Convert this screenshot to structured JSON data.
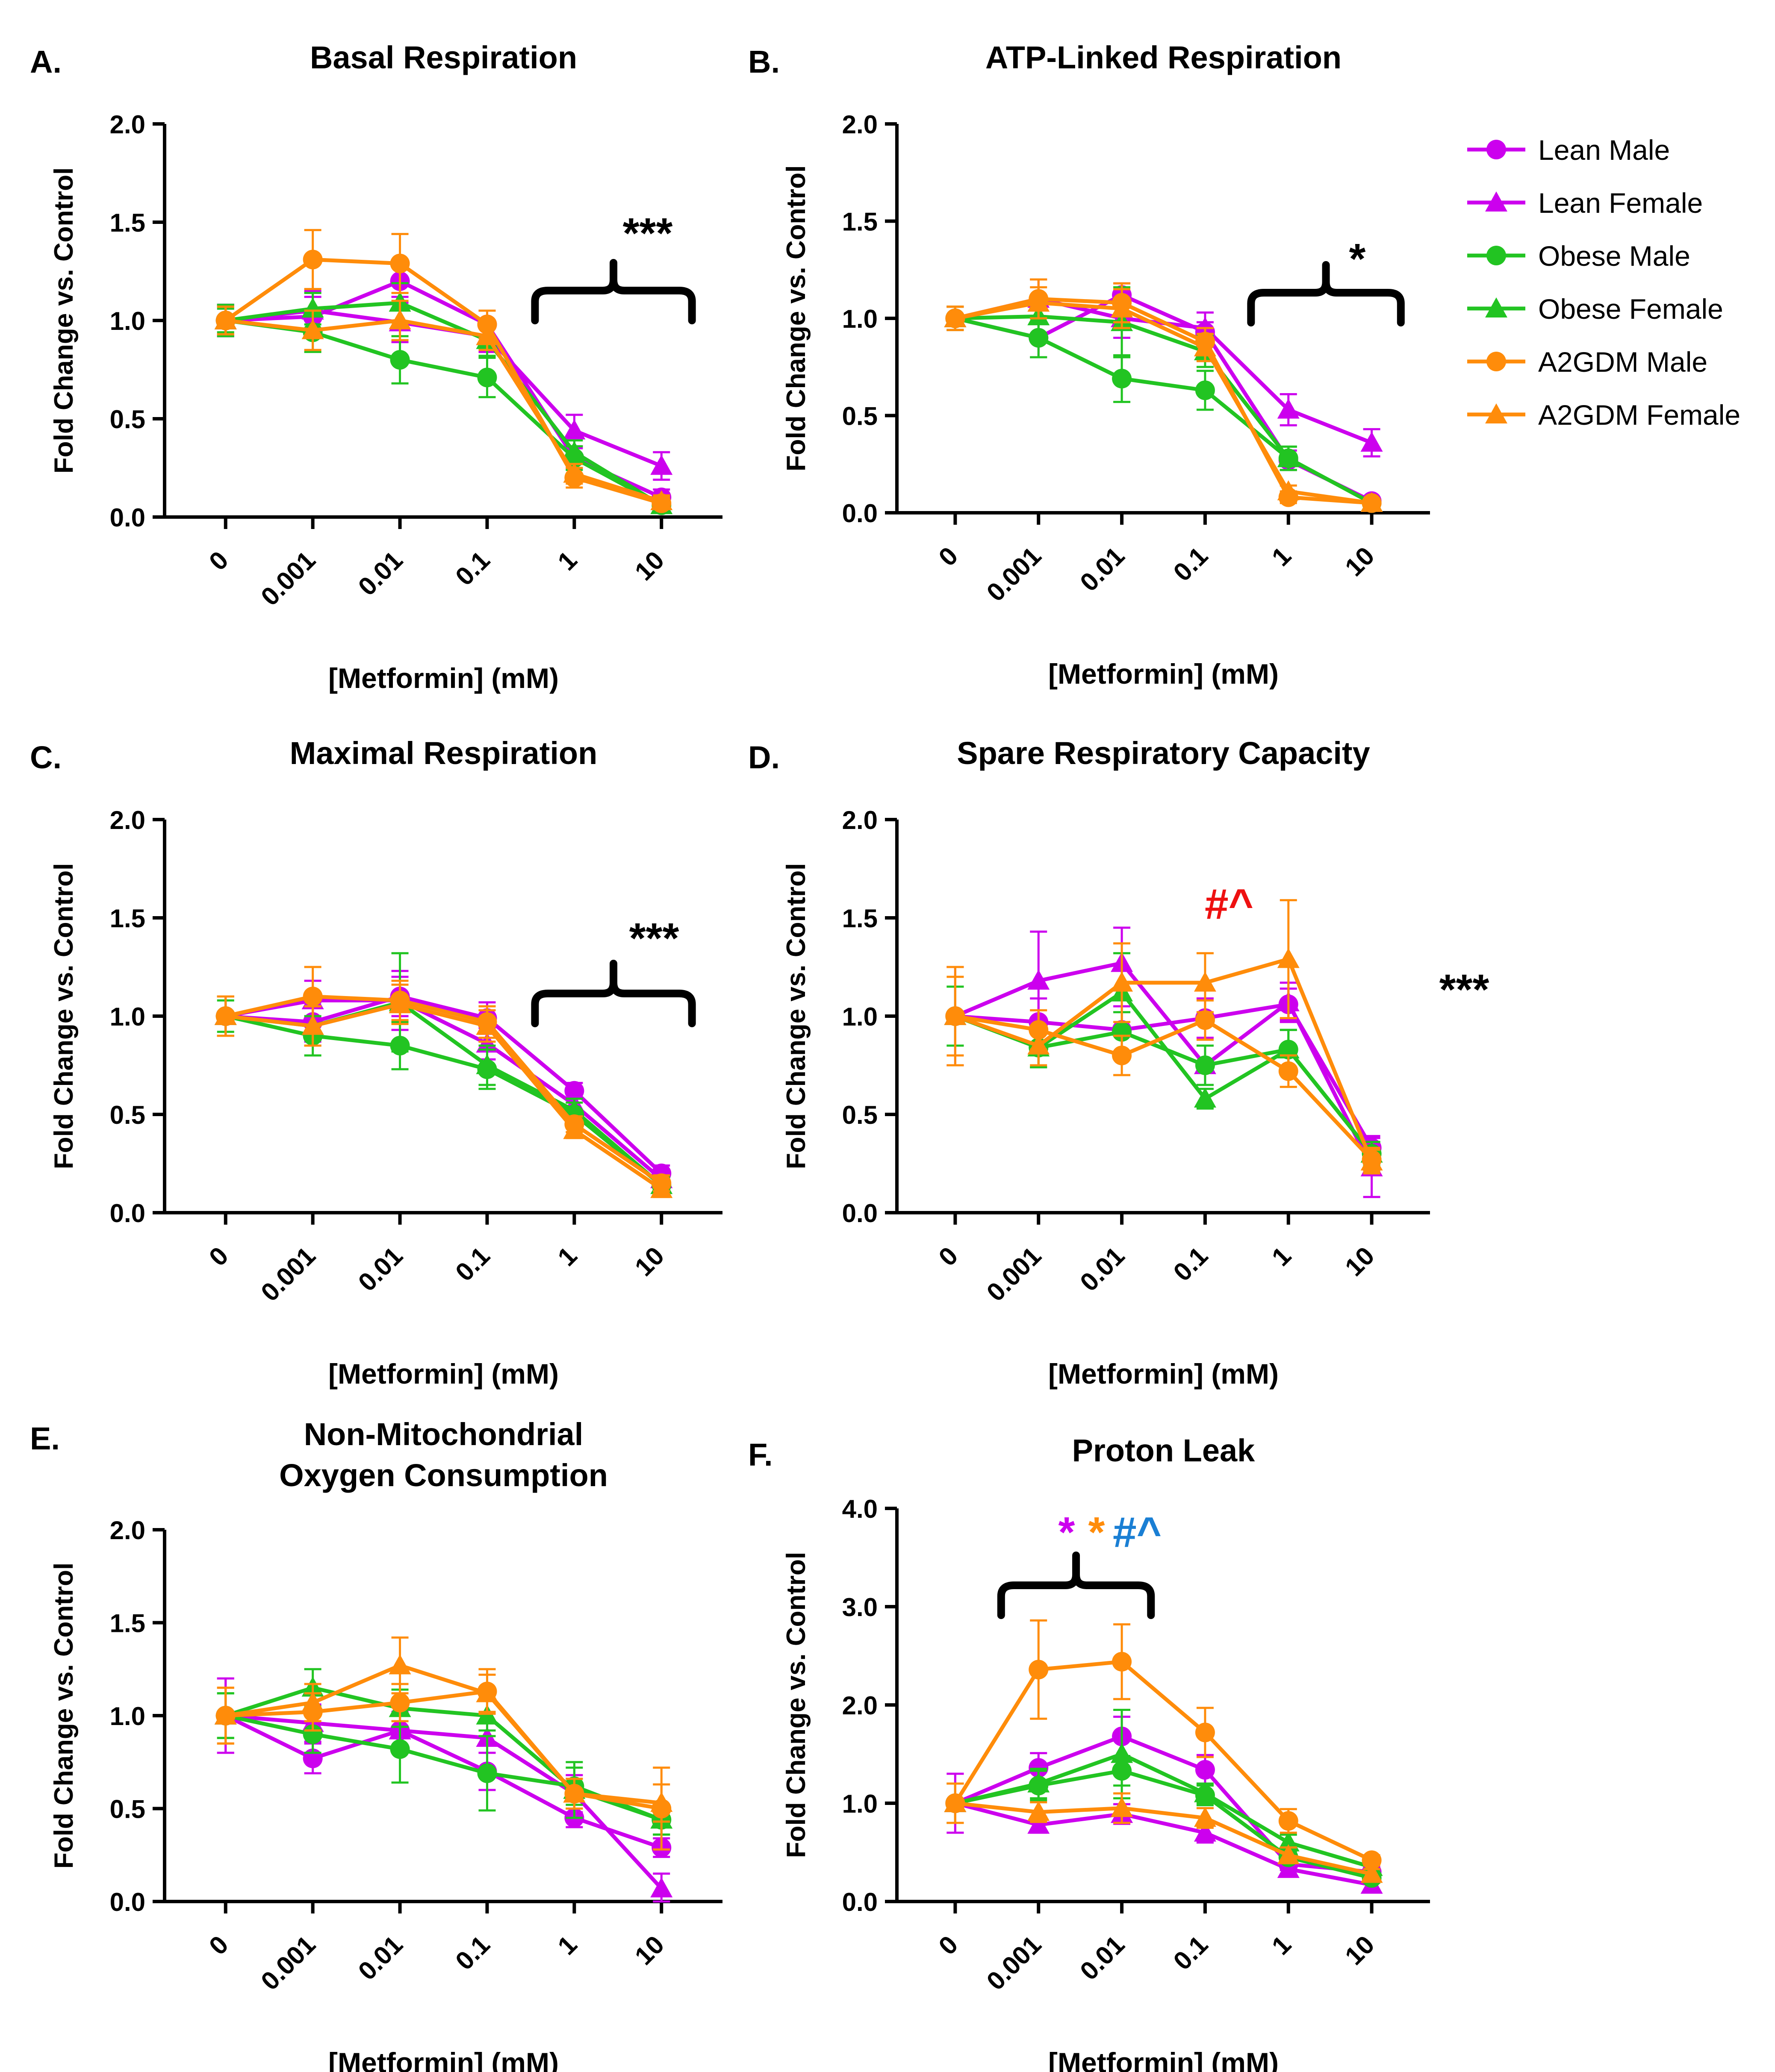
{
  "figure": {
    "series_meta": [
      {
        "name": "Lean Male",
        "color": "#cc00ee",
        "marker": "circle"
      },
      {
        "name": "Lean Female",
        "color": "#cc00ee",
        "marker": "triangle"
      },
      {
        "name": "Obese Male",
        "color": "#22c422",
        "marker": "circle"
      },
      {
        "name": "Obese Female",
        "color": "#22c422",
        "marker": "triangle"
      },
      {
        "name": "A2GDM Male",
        "color": "#ff8c0a",
        "marker": "circle"
      },
      {
        "name": "A2GDM Female",
        "color": "#ff8c0a",
        "marker": "triangle"
      }
    ],
    "legend_title": ""
  },
  "chart_data": [
    {
      "panel": "A.",
      "type": "line",
      "title": "Basal Respiration",
      "xlabel": "[Metformin] (mM)",
      "ylabel": "Fold Change vs. Control",
      "categories": [
        "0",
        "0.001",
        "0.01",
        "0.1",
        "1",
        "10"
      ],
      "ylim": [
        0,
        2
      ],
      "yticks": [
        "0.0",
        "0.5",
        "1.0",
        "1.5",
        "2.0"
      ],
      "series": [
        {
          "name": "Lean Male",
          "values": [
            1.0,
            1.02,
            1.2,
            0.98,
            0.3,
            0.1
          ],
          "errors": [
            0.08,
            0.1,
            0.08,
            0.07,
            0.05,
            0.04
          ]
        },
        {
          "name": "Lean Female",
          "values": [
            1.0,
            1.05,
            0.99,
            0.92,
            0.44,
            0.26
          ],
          "errors": [
            0.08,
            0.1,
            0.1,
            0.08,
            0.08,
            0.07
          ]
        },
        {
          "name": "Obese Male",
          "values": [
            1.0,
            0.94,
            0.8,
            0.71,
            0.3,
            0.06
          ],
          "errors": [
            0.06,
            0.1,
            0.12,
            0.1,
            0.06,
            0.03
          ]
        },
        {
          "name": "Obese Female",
          "values": [
            1.0,
            1.06,
            1.09,
            0.9,
            0.33,
            0.06
          ],
          "errors": [
            0.08,
            0.08,
            0.1,
            0.08,
            0.06,
            0.03
          ]
        },
        {
          "name": "A2GDM Male",
          "values": [
            1.0,
            1.31,
            1.29,
            0.98,
            0.2,
            0.07
          ],
          "errors": [
            0.07,
            0.15,
            0.15,
            0.07,
            0.05,
            0.03
          ]
        },
        {
          "name": "A2GDM Female",
          "values": [
            1.0,
            0.95,
            1.0,
            0.92,
            0.22,
            0.08
          ],
          "errors": [
            0.07,
            0.1,
            0.1,
            0.07,
            0.05,
            0.03
          ]
        }
      ],
      "annotations": [
        {
          "text": "***",
          "color": "#000000"
        }
      ],
      "bracket": {
        "from": 4,
        "to": 5
      }
    },
    {
      "panel": "B.",
      "type": "line",
      "title": "ATP-Linked Respiration",
      "xlabel": "[Metformin] (mM)",
      "ylabel": "Fold Change vs. Control",
      "categories": [
        "0",
        "0.001",
        "0.01",
        "0.1",
        "1",
        "10"
      ],
      "ylim": [
        0,
        2
      ],
      "yticks": [
        "0.0",
        "0.5",
        "1.0",
        "1.5",
        "2.0"
      ],
      "series": [
        {
          "name": "Lean Male",
          "values": [
            1.0,
            0.9,
            1.12,
            0.93,
            0.27,
            0.06
          ],
          "errors": [
            0.06,
            0.1,
            0.06,
            0.05,
            0.05,
            0.02
          ]
        },
        {
          "name": "Lean Female",
          "values": [
            1.0,
            1.1,
            1.0,
            0.95,
            0.53,
            0.36
          ],
          "errors": [
            0.06,
            0.1,
            0.1,
            0.08,
            0.08,
            0.07
          ]
        },
        {
          "name": "Obese Male",
          "values": [
            1.0,
            0.9,
            0.69,
            0.63,
            0.28,
            0.05
          ],
          "errors": [
            0.06,
            0.1,
            0.12,
            0.1,
            0.06,
            0.02
          ]
        },
        {
          "name": "Obese Female",
          "values": [
            1.0,
            1.01,
            0.98,
            0.83,
            0.28,
            0.05
          ],
          "errors": [
            0.06,
            0.1,
            0.18,
            0.08,
            0.06,
            0.02
          ]
        },
        {
          "name": "A2GDM Male",
          "values": [
            1.0,
            1.1,
            1.08,
            0.88,
            0.08,
            0.05
          ],
          "errors": [
            0.06,
            0.1,
            0.1,
            0.07,
            0.03,
            0.02
          ]
        },
        {
          "name": "A2GDM Female",
          "values": [
            1.0,
            1.08,
            1.05,
            0.85,
            0.11,
            0.05
          ],
          "errors": [
            0.06,
            0.08,
            0.1,
            0.07,
            0.03,
            0.02
          ]
        }
      ],
      "annotations": [
        {
          "text": "*",
          "color": "#000000"
        }
      ],
      "bracket": {
        "from": 4,
        "to": 5
      }
    },
    {
      "panel": "C.",
      "type": "line",
      "title": "Maximal Respiration",
      "xlabel": "[Metformin] (mM)",
      "ylabel": "Fold Change vs. Control",
      "categories": [
        "0",
        "0.001",
        "0.01",
        "0.1",
        "1",
        "10"
      ],
      "ylim": [
        0,
        2
      ],
      "yticks": [
        "0.0",
        "0.5",
        "1.0",
        "1.5",
        "2.0"
      ],
      "series": [
        {
          "name": "Lean Male",
          "values": [
            1.0,
            0.97,
            1.1,
            0.99,
            0.62,
            0.2
          ],
          "errors": [
            0.1,
            0.1,
            0.1,
            0.08,
            0.04,
            0.04
          ]
        },
        {
          "name": "Lean Female",
          "values": [
            1.0,
            1.08,
            1.08,
            0.86,
            0.55,
            0.17
          ],
          "errors": [
            0.1,
            0.1,
            0.15,
            0.08,
            0.05,
            0.04
          ]
        },
        {
          "name": "Obese Male",
          "values": [
            1.0,
            0.9,
            0.85,
            0.73,
            0.5,
            0.14
          ],
          "errors": [
            0.08,
            0.1,
            0.12,
            0.1,
            0.06,
            0.04
          ]
        },
        {
          "name": "Obese Female",
          "values": [
            1.0,
            0.95,
            1.07,
            0.75,
            0.52,
            0.14
          ],
          "errors": [
            0.1,
            0.1,
            0.25,
            0.1,
            0.06,
            0.04
          ]
        },
        {
          "name": "A2GDM Male",
          "values": [
            1.0,
            1.1,
            1.08,
            0.97,
            0.45,
            0.15
          ],
          "errors": [
            0.1,
            0.15,
            0.1,
            0.08,
            0.04,
            0.04
          ]
        },
        {
          "name": "A2GDM Female",
          "values": [
            1.0,
            0.95,
            1.06,
            0.95,
            0.42,
            0.12
          ],
          "errors": [
            0.1,
            0.1,
            0.1,
            0.08,
            0.04,
            0.04
          ]
        }
      ],
      "annotations": [
        {
          "text": "***",
          "color": "#000000"
        }
      ],
      "bracket": {
        "from": 4,
        "to": 5
      }
    },
    {
      "panel": "D.",
      "type": "line",
      "title": "Spare Respiratory Capacity",
      "xlabel": "[Metformin] (mM)",
      "ylabel": "Fold Change vs. Control",
      "categories": [
        "0",
        "0.001",
        "0.01",
        "0.1",
        "1",
        "10"
      ],
      "ylim": [
        0,
        2
      ],
      "yticks": [
        "0.0",
        "0.5",
        "1.0",
        "1.5",
        "2.0"
      ],
      "series": [
        {
          "name": "Lean Male",
          "values": [
            1.0,
            0.97,
            0.93,
            0.99,
            1.06,
            0.33
          ],
          "errors": [
            0.25,
            0.12,
            0.12,
            0.1,
            0.08,
            0.06
          ]
        },
        {
          "name": "Lean Female",
          "values": [
            1.0,
            1.18,
            1.27,
            0.75,
            1.07,
            0.23
          ],
          "errors": [
            0.25,
            0.25,
            0.18,
            0.1,
            0.1,
            0.15
          ]
        },
        {
          "name": "Obese Male",
          "values": [
            1.0,
            0.84,
            0.92,
            0.75,
            0.83,
            0.3
          ],
          "errors": [
            0.15,
            0.1,
            0.1,
            0.1,
            0.1,
            0.06
          ]
        },
        {
          "name": "Obese Female",
          "values": [
            1.0,
            0.84,
            1.12,
            0.58,
            0.83,
            0.3
          ],
          "errors": [
            0.15,
            0.1,
            0.2,
            0.05,
            0.1,
            0.06
          ]
        },
        {
          "name": "A2GDM Male",
          "values": [
            1.0,
            0.93,
            0.8,
            0.98,
            0.72,
            0.27
          ],
          "errors": [
            0.25,
            0.1,
            0.1,
            0.1,
            0.08,
            0.06
          ]
        },
        {
          "name": "A2GDM Female",
          "values": [
            1.0,
            0.85,
            1.17,
            1.17,
            1.29,
            0.26
          ],
          "errors": [
            0.2,
            0.1,
            0.2,
            0.15,
            0.3,
            0.06
          ]
        }
      ],
      "annotations": [
        {
          "text": "#^",
          "color": "#ee1111"
        },
        {
          "text": "***",
          "color": "#000000"
        }
      ],
      "bracket": null
    },
    {
      "panel": "E.",
      "type": "line",
      "title": "Non-Mitochondrial Oxygen Consumption",
      "title_lines": [
        "Non-Mitochondrial",
        "Oxygen Consumption"
      ],
      "xlabel": "[Metformin] (mM)",
      "ylabel": "Fold Change vs. Control",
      "categories": [
        "0",
        "0.001",
        "0.01",
        "0.1",
        "1",
        "10"
      ],
      "ylim": [
        0,
        2
      ],
      "yticks": [
        "0.0",
        "0.5",
        "1.0",
        "1.5",
        "2.0"
      ],
      "series": [
        {
          "name": "Lean Male",
          "values": [
            1.0,
            0.77,
            0.92,
            0.7,
            0.45,
            0.29
          ],
          "errors": [
            0.2,
            0.08,
            0.1,
            0.1,
            0.05,
            0.05
          ]
        },
        {
          "name": "Lean Female",
          "values": [
            1.0,
            0.96,
            0.92,
            0.88,
            0.58,
            0.07
          ],
          "errors": [
            0.2,
            0.1,
            0.1,
            0.08,
            0.1,
            0.08
          ]
        },
        {
          "name": "Obese Male",
          "values": [
            1.0,
            0.9,
            0.82,
            0.69,
            0.62,
            0.44
          ],
          "errors": [
            0.12,
            0.1,
            0.18,
            0.2,
            0.1,
            0.08
          ]
        },
        {
          "name": "Obese Female",
          "values": [
            1.0,
            1.15,
            1.04,
            1.0,
            0.6,
            0.44
          ],
          "errors": [
            0.12,
            0.1,
            0.1,
            0.08,
            0.15,
            0.08
          ]
        },
        {
          "name": "A2GDM Male",
          "values": [
            1.0,
            1.02,
            1.07,
            1.13,
            0.58,
            0.5
          ],
          "errors": [
            0.15,
            0.1,
            0.1,
            0.12,
            0.08,
            0.22
          ]
        },
        {
          "name": "A2GDM Female",
          "values": [
            1.0,
            1.07,
            1.27,
            1.12,
            0.58,
            0.53
          ],
          "errors": [
            0.15,
            0.1,
            0.15,
            0.1,
            0.08,
            0.1
          ]
        }
      ],
      "annotations": [],
      "bracket": null
    },
    {
      "panel": "F.",
      "type": "line",
      "title": "Proton Leak",
      "xlabel": "[Metformin] (mM)",
      "ylabel": "Fold Change vs. Control",
      "categories": [
        "0",
        "0.001",
        "0.01",
        "0.1",
        "1",
        "10"
      ],
      "ylim": [
        0,
        4
      ],
      "yticks": [
        "0.0",
        "1.0",
        "2.0",
        "3.0",
        "4.0"
      ],
      "series": [
        {
          "name": "Lean Male",
          "values": [
            1.0,
            1.36,
            1.68,
            1.34,
            0.38,
            0.3
          ],
          "errors": [
            0.3,
            0.15,
            0.2,
            0.15,
            0.06,
            0.05
          ]
        },
        {
          "name": "Lean Female",
          "values": [
            1.0,
            0.78,
            0.89,
            0.7,
            0.33,
            0.17
          ],
          "errors": [
            0.3,
            0.08,
            0.1,
            0.1,
            0.06,
            0.05
          ]
        },
        {
          "name": "Obese Male",
          "values": [
            1.0,
            1.18,
            1.33,
            1.08,
            0.45,
            0.24
          ],
          "errors": [
            0.2,
            0.15,
            0.15,
            0.1,
            0.06,
            0.05
          ]
        },
        {
          "name": "Obese Female",
          "values": [
            1.0,
            1.2,
            1.5,
            1.1,
            0.6,
            0.35
          ],
          "errors": [
            0.2,
            0.15,
            0.45,
            0.1,
            0.08,
            0.05
          ]
        },
        {
          "name": "A2GDM Male",
          "values": [
            1.0,
            2.36,
            2.44,
            1.72,
            0.82,
            0.42
          ],
          "errors": [
            0.2,
            0.5,
            0.38,
            0.25,
            0.12,
            0.05
          ]
        },
        {
          "name": "A2GDM Female",
          "values": [
            1.0,
            0.91,
            0.95,
            0.85,
            0.47,
            0.28
          ],
          "errors": [
            0.2,
            0.1,
            0.15,
            0.1,
            0.08,
            0.05
          ]
        }
      ],
      "annotations": [
        {
          "text": "*",
          "color": "#cc00ee"
        },
        {
          "text": "*",
          "color": "#ff8c0a"
        },
        {
          "text": "#^",
          "color": "#1a7fd4"
        }
      ],
      "bracket": {
        "from": 1,
        "to": 2
      }
    }
  ]
}
